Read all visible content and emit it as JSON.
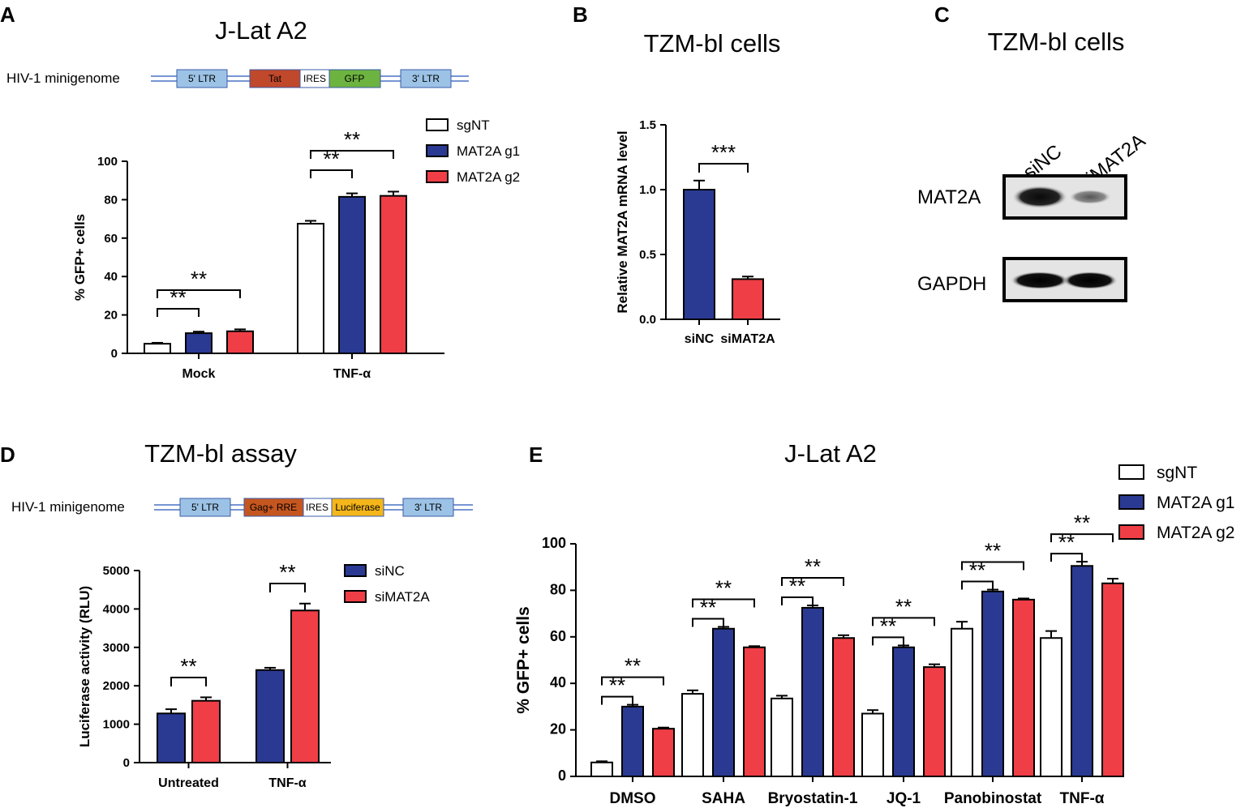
{
  "colors": {
    "sgNT": "#ffffff",
    "blue": "#2a3a93",
    "red": "#f03e46",
    "ltrBox": "#9cc3e6",
    "tatBox": "#c0482b",
    "gfpBox": "#6db33f",
    "gagBox": "#c5561f",
    "lucBox": "#f5b61a"
  },
  "panelA": {
    "label": "A",
    "title": "J-Lat A2",
    "minigenome": {
      "label": "HIV-1 minigenome",
      "boxes": [
        "5' LTR",
        "Tat",
        "IRES",
        "GFP",
        "3' LTR"
      ]
    },
    "chart_data": {
      "type": "bar",
      "title": "J-Lat A2",
      "ylabel": "% GFP+ cells",
      "ylim": [
        0,
        100
      ],
      "yticks": [
        "0",
        "20",
        "40",
        "60",
        "80",
        "100"
      ],
      "categories": [
        "Mock",
        "TNF-α"
      ],
      "series": [
        {
          "name": "sgNT",
          "values": [
            5,
            67.5
          ],
          "errors": [
            0.5,
            1.5
          ]
        },
        {
          "name": "MAT2A g1",
          "values": [
            10.5,
            81.5
          ],
          "errors": [
            0.8,
            1.8
          ]
        },
        {
          "name": "MAT2A g2",
          "values": [
            11.5,
            82
          ],
          "errors": [
            1,
            2.2
          ]
        }
      ],
      "significance": [
        "**",
        "**",
        "**",
        "**"
      ]
    }
  },
  "panelB": {
    "label": "B",
    "title": "TZM-bl cells",
    "chart_data": {
      "type": "bar",
      "title": "TZM-bl cells",
      "ylabel": "Relative MAT2A mRNA level",
      "ylim": [
        0,
        1.5
      ],
      "yticks": [
        "0.0",
        "0.5",
        "1.0",
        "1.5"
      ],
      "categories": [
        "siNC",
        "siMAT2A"
      ],
      "values": [
        1.0,
        0.31
      ],
      "errors": [
        0.07,
        0.02
      ],
      "significance": [
        "***"
      ]
    }
  },
  "panelC": {
    "label": "C",
    "title": "TZM-bl cells",
    "lanes": [
      "siNC",
      "siMAT2A"
    ],
    "rows": [
      "MAT2A",
      "GAPDH"
    ]
  },
  "panelD": {
    "label": "D",
    "title": "TZM-bl assay",
    "minigenome": {
      "label": "HIV-1 minigenome",
      "boxes": [
        "5' LTR",
        "Gag+ RRE",
        "IRES",
        "Luciferase",
        "3' LTR"
      ]
    },
    "chart_data": {
      "type": "bar",
      "title": "TZM-bl assay",
      "ylabel": "Luciferase activity (RLU)",
      "ylim": [
        0,
        5000
      ],
      "yticks": [
        "0",
        "1000",
        "2000",
        "3000",
        "4000",
        "5000"
      ],
      "categories": [
        "Untreated",
        "TNF-α"
      ],
      "series": [
        {
          "name": "siNC",
          "values": [
            1280,
            2410
          ],
          "errors": [
            110,
            60
          ]
        },
        {
          "name": "siMAT2A",
          "values": [
            1610,
            3960
          ],
          "errors": [
            90,
            180
          ]
        }
      ],
      "significance": [
        "**",
        "**"
      ]
    }
  },
  "panelE": {
    "label": "E",
    "title": "J-Lat A2",
    "chart_data": {
      "type": "bar",
      "title": "J-Lat A2",
      "ylabel": "% GFP+ cells",
      "ylim": [
        0,
        100
      ],
      "yticks": [
        "0",
        "20",
        "40",
        "60",
        "80",
        "100"
      ],
      "categories": [
        "DMSO",
        "SAHA",
        "Bryostatin-1",
        "JQ-1",
        "Panobinostat",
        "TNF-α"
      ],
      "series": [
        {
          "name": "sgNT",
          "values": [
            6,
            35.5,
            33.5,
            27,
            63.5,
            59.5
          ],
          "errors": [
            0.5,
            1.5,
            1.2,
            1.5,
            3,
            3
          ]
        },
        {
          "name": "MAT2A g1",
          "values": [
            30,
            63.5,
            72.5,
            55.5,
            79.5,
            90.5
          ],
          "errors": [
            0.8,
            0.8,
            1,
            0.8,
            0.8,
            1.8
          ]
        },
        {
          "name": "MAT2A g2",
          "values": [
            20.5,
            55.5,
            59.5,
            47,
            76,
            83
          ],
          "errors": [
            0.5,
            0.5,
            1.2,
            1.2,
            0.5,
            2
          ]
        }
      ],
      "significance": [
        "**",
        "**",
        "**",
        "**",
        "**",
        "**",
        "**",
        "**",
        "**",
        "**",
        "**",
        "**"
      ]
    }
  }
}
